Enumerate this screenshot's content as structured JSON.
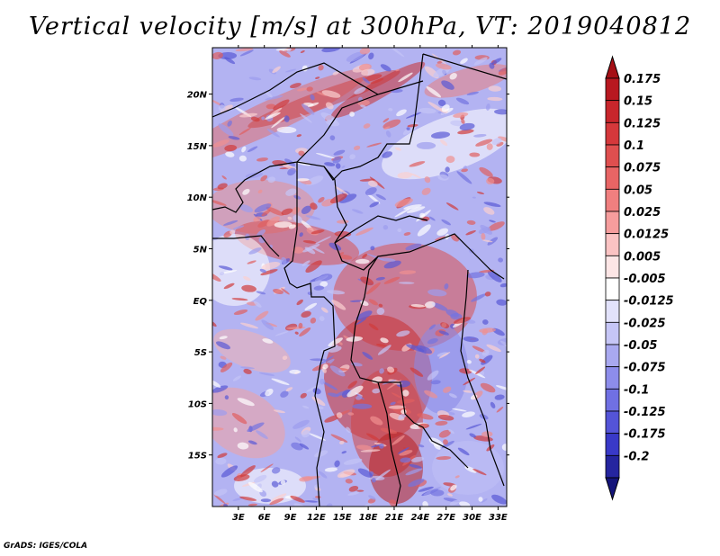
{
  "title": "Vertical velocity [m/s] at 300hPa, VT: 2019040812",
  "credit": "GrADS: IGES/COLA",
  "chart_data": {
    "type": "heatmap",
    "title": "Vertical velocity [m/s] at 300hPa, VT: 2019040812",
    "variable": "Vertical velocity",
    "units": "m/s",
    "level": "300hPa",
    "valid_time": "2019040812",
    "lon_range": [
      0,
      34
    ],
    "lat_range": [
      -20,
      24.5
    ],
    "x_ticks": [
      {
        "value": 3,
        "label": "3E"
      },
      {
        "value": 6,
        "label": "6E"
      },
      {
        "value": 9,
        "label": "9E"
      },
      {
        "value": 12,
        "label": "12E"
      },
      {
        "value": 15,
        "label": "15E"
      },
      {
        "value": 18,
        "label": "18E"
      },
      {
        "value": 21,
        "label": "21E"
      },
      {
        "value": 24,
        "label": "24E"
      },
      {
        "value": 27,
        "label": "27E"
      },
      {
        "value": 30,
        "label": "30E"
      },
      {
        "value": 33,
        "label": "33E"
      }
    ],
    "y_ticks": [
      {
        "value": 20,
        "label": "20N"
      },
      {
        "value": 15,
        "label": "15N"
      },
      {
        "value": 10,
        "label": "10N"
      },
      {
        "value": 5,
        "label": "5N"
      },
      {
        "value": 0,
        "label": "EQ"
      },
      {
        "value": -5,
        "label": "5S"
      },
      {
        "value": -10,
        "label": "10S"
      },
      {
        "value": -15,
        "label": "15S"
      }
    ],
    "colorbar": {
      "labels": [
        "0.175",
        "0.15",
        "0.125",
        "0.1",
        "0.075",
        "0.05",
        "0.025",
        "0.0125",
        "0.005",
        "-0.005",
        "-0.0125",
        "-0.025",
        "-0.05",
        "-0.075",
        "-0.1",
        "-0.125",
        "-0.175",
        "-0.2"
      ],
      "colors": [
        "#a50f15",
        "#b81820",
        "#c8262c",
        "#d5383b",
        "#df4f4f",
        "#e86565",
        "#f07f7f",
        "#f69d9d",
        "#fbc3c3",
        "#fde6e6",
        "#ffffff",
        "#e2e2fb",
        "#c6c6f6",
        "#a9a9f0",
        "#8d8deb",
        "#7070e3",
        "#5454d8",
        "#3939c8",
        "#25259f",
        "#14147a"
      ]
    }
  }
}
